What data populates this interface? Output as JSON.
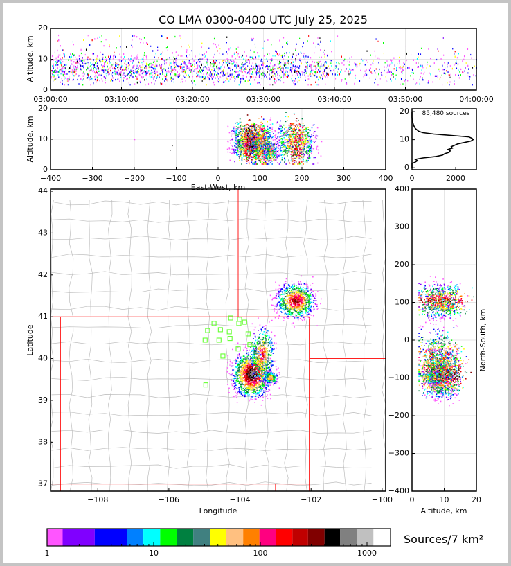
{
  "chart_data": {
    "title": "CO LMA 0300-0400 UTC July 25, 2025",
    "type": "scatter",
    "panels": {
      "time_altitude": {
        "type": "scatter",
        "xlabel": "",
        "ylabel": "Altitude, km",
        "xlim_minutes": [
          0,
          60
        ],
        "ylim": [
          0,
          20
        ],
        "xticks": [
          0,
          10,
          20,
          30,
          40,
          50,
          60
        ],
        "xtick_labels": [
          "03:00:00",
          "03:10:00",
          "03:20:00",
          "03:30:00",
          "03:40:00",
          "03:50:00",
          "04:00:00"
        ],
        "yticks": [
          0,
          10,
          20
        ],
        "source_altitude_range_km": [
          2,
          19
        ],
        "dense_period_minutes": [
          0,
          39
        ]
      },
      "east_west_altitude": {
        "type": "scatter",
        "xlabel": "East-West, km",
        "ylabel": "Altitude, km",
        "xlim": [
          -400,
          400
        ],
        "ylim": [
          0,
          20
        ],
        "xticks": [
          -400,
          -300,
          -200,
          -100,
          0,
          100,
          200,
          300,
          400
        ],
        "xtick_labels": [
          "−400",
          "−300",
          "−200",
          "−100",
          "0",
          "100",
          "200",
          "300",
          "400"
        ],
        "yticks": [
          0,
          10,
          20
        ]
      },
      "altitude_histogram": {
        "type": "line",
        "annotation": "85,480 sources",
        "xlim": [
          0,
          2950
        ],
        "ylim": [
          -0.7,
          21
        ],
        "xticks": [
          0,
          2000
        ],
        "yticks": [
          0,
          10,
          20
        ],
        "altitude_km": [
          0,
          1.5,
          2,
          2.5,
          3,
          3.5,
          4,
          4.5,
          5,
          5.5,
          6,
          6.5,
          7,
          7.5,
          8,
          8.5,
          9,
          9.5,
          10,
          10.5,
          11,
          11.5,
          12,
          12.5,
          13,
          14,
          15,
          16,
          17,
          18,
          20
        ],
        "count": [
          0,
          0,
          150,
          250,
          150,
          500,
          1100,
          1400,
          1500,
          1700,
          1750,
          1650,
          1850,
          1800,
          1950,
          2100,
          2400,
          2700,
          2800,
          2750,
          2600,
          1800,
          1000,
          500,
          300,
          150,
          80,
          40,
          10,
          0,
          0
        ]
      },
      "plan_view": {
        "type": "scatter",
        "xlabel": "Longitude",
        "ylabel": "Latitude",
        "xlim": [
          -109.33,
          -99.9
        ],
        "ylim": [
          36.83,
          44.05
        ],
        "xticks": [
          -108,
          -106,
          -104,
          -102,
          -100
        ],
        "xtick_labels": [
          "−108",
          "−106",
          "−104",
          "−102",
          "−100"
        ],
        "yticks": [
          37,
          38,
          39,
          40,
          41,
          42,
          43,
          44
        ],
        "stations": [
          [
            -104.26,
            40.97
          ],
          [
            -104.01,
            40.94
          ],
          [
            -104.73,
            40.84
          ],
          [
            -104.03,
            40.84
          ],
          [
            -103.87,
            40.87
          ],
          [
            -104.91,
            40.67
          ],
          [
            -104.55,
            40.69
          ],
          [
            -104.3,
            40.64
          ],
          [
            -103.77,
            40.59
          ],
          [
            -104.98,
            40.44
          ],
          [
            -104.59,
            40.44
          ],
          [
            -104.28,
            40.48
          ],
          [
            -103.72,
            40.33
          ],
          [
            -104.05,
            40.23
          ],
          [
            -104.48,
            40.06
          ],
          [
            -104.96,
            39.37
          ]
        ],
        "storm_clusters": [
          {
            "lon": -103.64,
            "lat": 39.65,
            "note": "southern cluster"
          },
          {
            "lon": -102.47,
            "lat": 41.35,
            "note": "northern cluster"
          }
        ]
      },
      "altitude_north_south": {
        "type": "scatter",
        "xlabel": "Altitude, km",
        "ylabel": "North-South, km",
        "xlim": [
          0,
          20
        ],
        "ylim": [
          -400,
          400
        ],
        "xticks": [
          0,
          10,
          20
        ],
        "yticks": [
          -400,
          -300,
          -200,
          -100,
          0,
          100,
          200,
          300,
          400
        ],
        "ytick_labels": [
          "−400",
          "−300",
          "−200",
          "−100",
          "0",
          "100",
          "200",
          "300",
          "400"
        ]
      }
    },
    "colorbar": {
      "label": "Sources/7 km²",
      "scale": "log",
      "tick_values": [
        1,
        10,
        100,
        1000
      ],
      "tick_labels": [
        "1",
        "10",
        "100",
        "1000"
      ],
      "colors": [
        "#ff55ff",
        "#8000ff",
        "#0000ff",
        "#0080ff",
        "#00ffff",
        "#00ff00",
        "#008040",
        "#408080",
        "#ffff00",
        "#ffc080",
        "#ff8000",
        "#ff0080",
        "#ff0000",
        "#c00000",
        "#800000",
        "#000000",
        "#808080",
        "#c0c0c0",
        "#ffffff"
      ]
    }
  }
}
